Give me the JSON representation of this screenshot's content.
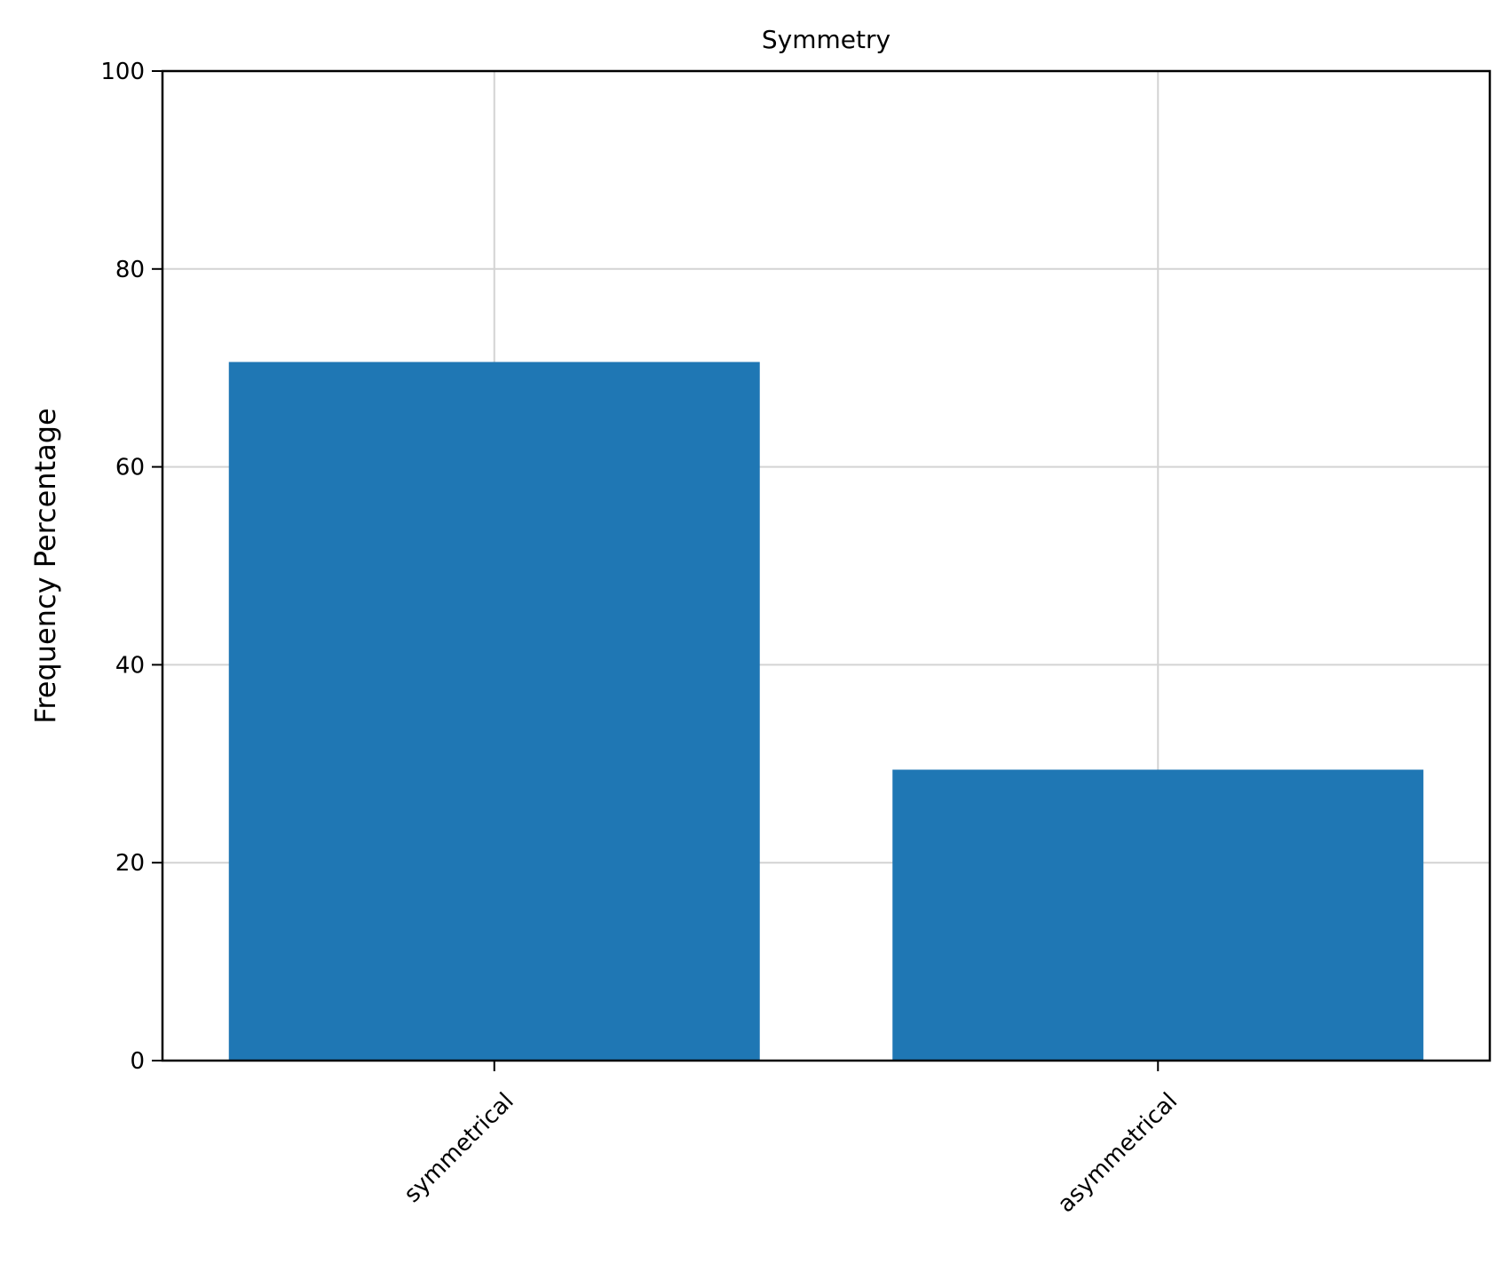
{
  "chart_data": {
    "type": "bar",
    "title": "Symmetry",
    "xlabel": "",
    "ylabel": "Frequency Percentage",
    "categories": [
      "symmetrical",
      "asymmetrical"
    ],
    "values": [
      70.6,
      29.4
    ],
    "ylim": [
      0,
      100
    ],
    "yticks": [
      0,
      20,
      40,
      60,
      80,
      100
    ],
    "grid": true,
    "legend": "none",
    "xtick_rotation_deg": 45,
    "bar_color": "#1f77b4"
  }
}
